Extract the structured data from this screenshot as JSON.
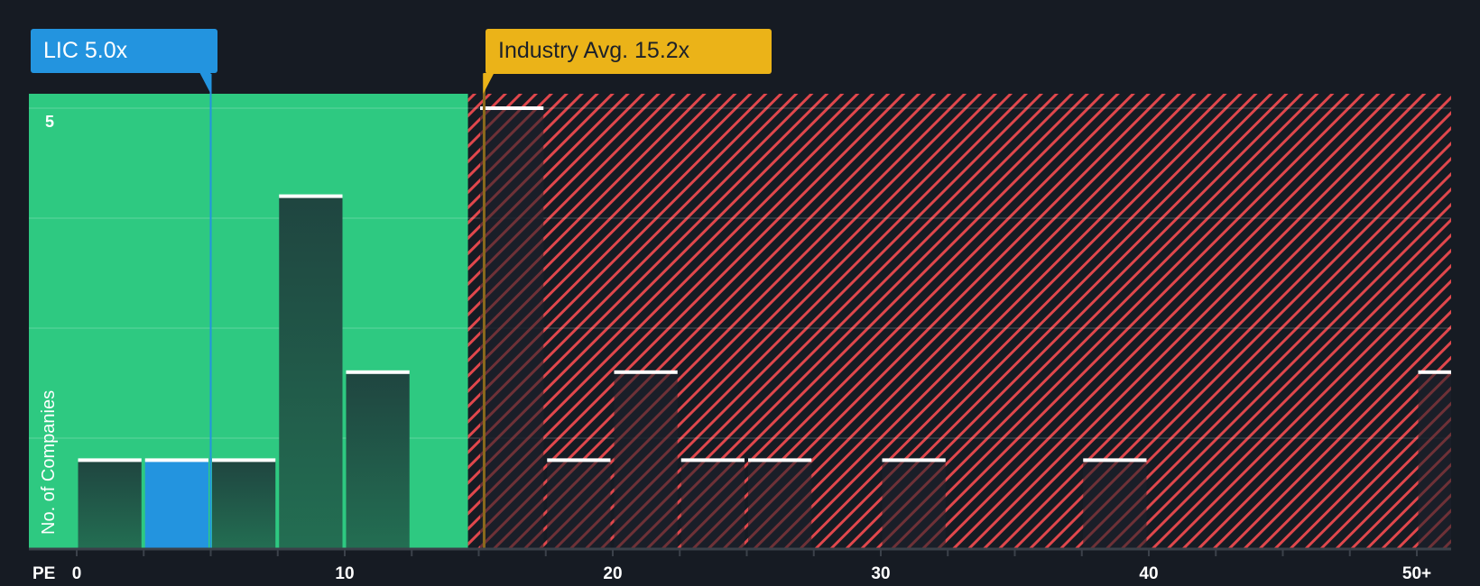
{
  "labels": {
    "company": {
      "text": "LIC 5.0x",
      "value": 5.0,
      "color": "#2394df"
    },
    "industry": {
      "text": "Industry Avg. 15.2x",
      "value": 15.2,
      "color": "#ebb318"
    }
  },
  "axis": {
    "x_title": "PE",
    "y_title": "No. of Companies",
    "y_tick_label": "5",
    "x_ticks": [
      {
        "value": 0,
        "label": "0"
      },
      {
        "value": 10,
        "label": "10"
      },
      {
        "value": 20,
        "label": "20"
      },
      {
        "value": 30,
        "label": "30"
      },
      {
        "value": 40,
        "label": "40"
      },
      {
        "value": 50,
        "label": "50+"
      }
    ]
  },
  "colors": {
    "background": "#161b23",
    "good_zone": "#2ec981",
    "bad_zone_stripe": "#e0474c",
    "bar_dark": "#1f4a3e",
    "bar_highlight": "#2394df",
    "bar_cap": "#ffffff",
    "axis": "#3b414a"
  },
  "chart_data": {
    "type": "bar",
    "title": "",
    "xlabel": "PE",
    "ylabel": "No. of Companies",
    "bin_width": 2.5,
    "categories": [
      "0-2.5",
      "2.5-5",
      "5-7.5",
      "7.5-10",
      "10-12.5",
      "12.5-15",
      "15-17.5",
      "17.5-20",
      "20-22.5",
      "22.5-25",
      "25-27.5",
      "27.5-30",
      "30-32.5",
      "32.5-35",
      "35-37.5",
      "37.5-40",
      "40-42.5",
      "42.5-45",
      "45-47.5",
      "47.5-50",
      "50+"
    ],
    "values": [
      1,
      1,
      1,
      4,
      2,
      0,
      5,
      1,
      2,
      1,
      1,
      0,
      1,
      0,
      0,
      1,
      0,
      0,
      0,
      0,
      2
    ],
    "bins": [
      {
        "start": 0,
        "count": 1
      },
      {
        "start": 2.5,
        "count": 1,
        "highlight": true
      },
      {
        "start": 5,
        "count": 1
      },
      {
        "start": 7.5,
        "count": 4
      },
      {
        "start": 10,
        "count": 2
      },
      {
        "start": 15,
        "count": 5
      },
      {
        "start": 17.5,
        "count": 1
      },
      {
        "start": 20,
        "count": 2
      },
      {
        "start": 22.5,
        "count": 1
      },
      {
        "start": 25,
        "count": 1
      },
      {
        "start": 30,
        "count": 1
      },
      {
        "start": 37.5,
        "count": 1
      },
      {
        "start": 50,
        "count": 2
      }
    ],
    "markers": [
      {
        "name": "LIC",
        "value": 5.0
      },
      {
        "name": "Industry Avg.",
        "value": 15.2
      }
    ],
    "good_zone_max": 14.6,
    "xlim": [
      0,
      51.5
    ],
    "ylim": [
      0,
      5
    ],
    "y_ticks_labeled": [
      5
    ],
    "grid": true,
    "legend": "none"
  }
}
